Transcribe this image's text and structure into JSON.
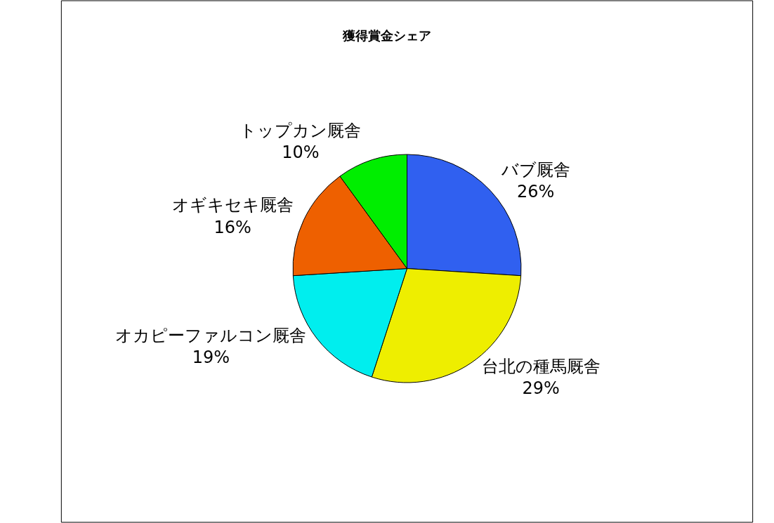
{
  "chart_data": {
    "type": "pie",
    "title": "獲得賞金シェア",
    "categories": [
      "バブ厩舎",
      "台北の種馬厩舎",
      "オカピーファルコン厩舎",
      "オギキセキ厩舎",
      "トップカン厩舎"
    ],
    "values": [
      26,
      29,
      19,
      16,
      10
    ],
    "colors": [
      "#3060f0",
      "#eeee00",
      "#00eeee",
      "#ee6000",
      "#00ee00"
    ],
    "value_labels": [
      "26%",
      "29%",
      "19%",
      "16%",
      "10%"
    ],
    "legend": false
  }
}
